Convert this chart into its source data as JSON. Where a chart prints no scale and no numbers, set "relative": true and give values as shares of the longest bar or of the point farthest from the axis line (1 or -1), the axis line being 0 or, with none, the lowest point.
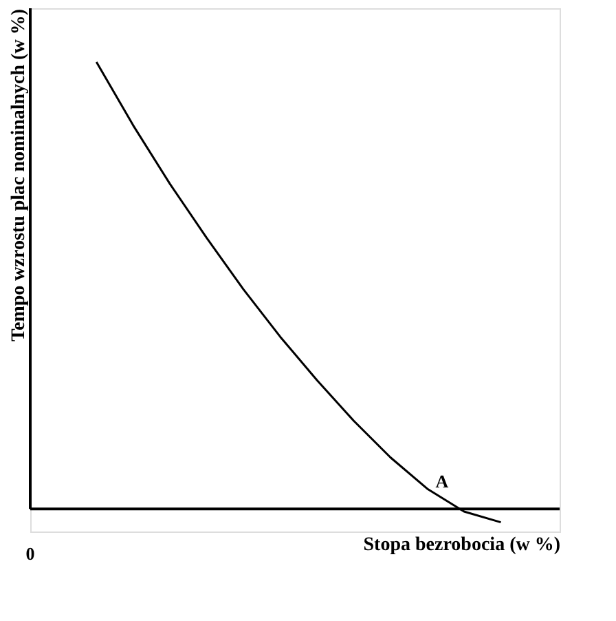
{
  "chart_data": {
    "type": "line",
    "relative": true,
    "xlabel": "Stopa bezrobocia (w %)",
    "ylabel": "Tempo wzrostu plac nominalnych (w %)",
    "categories": [
      null,
      null,
      null,
      null,
      null,
      null,
      null,
      null,
      null,
      null,
      null,
      null
    ],
    "series": [
      {
        "color": "#000000",
        "values": [
          1,
          0.858,
          0.727,
          0.606,
          0.491,
          0.385,
          0.288,
          0.197,
          0.115,
          0.045,
          -0.006,
          -0.03
        ]
      }
    ],
    "annotations": [
      "0",
      "A"
    ],
    "grid": false
  }
}
